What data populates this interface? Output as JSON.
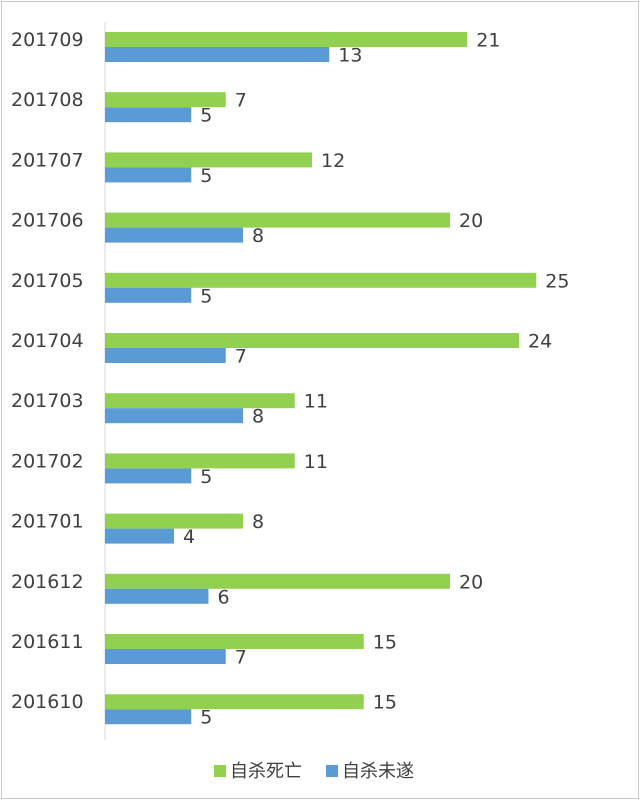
{
  "chart_data": {
    "type": "bar",
    "orientation": "horizontal",
    "categories": [
      "201709",
      "201708",
      "201707",
      "201706",
      "201705",
      "201704",
      "201703",
      "201702",
      "201701",
      "201612",
      "201611",
      "201610"
    ],
    "series": [
      {
        "name": "自杀死亡",
        "color": "#92d050",
        "values": [
          21,
          7,
          12,
          20,
          25,
          24,
          11,
          11,
          8,
          20,
          15,
          15
        ]
      },
      {
        "name": "自杀未遂",
        "color": "#5b9bd5",
        "values": [
          13,
          5,
          5,
          8,
          5,
          7,
          8,
          5,
          4,
          6,
          7,
          5
        ]
      }
    ],
    "xlim": [
      0,
      28
    ],
    "data_labels": true,
    "grid": false,
    "legend_position": "bottom"
  }
}
